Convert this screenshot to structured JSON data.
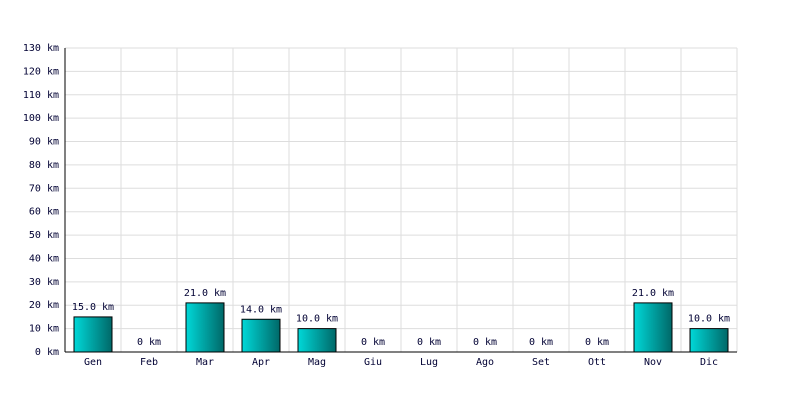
{
  "chart_data": {
    "type": "bar",
    "categories": [
      "Gen",
      "Feb",
      "Mar",
      "Apr",
      "Mag",
      "Giu",
      "Lug",
      "Ago",
      "Set",
      "Ott",
      "Nov",
      "Dic"
    ],
    "values": [
      15,
      0,
      21,
      14,
      10,
      0,
      0,
      0,
      0,
      0,
      21,
      10
    ],
    "value_labels": [
      "15.0 km",
      "0 km",
      "21.0 km",
      "14.0 km",
      "10.0 km",
      "0 km",
      "0 km",
      "0 km",
      "0 km",
      "0 km",
      "21.0 km",
      "10.0 km"
    ],
    "color": "#00d8d8",
    "ylim": [
      0,
      130
    ],
    "yticks": [
      {
        "value": 0,
        "label": "0 km"
      },
      {
        "value": 10,
        "label": "10 km"
      },
      {
        "value": 20,
        "label": "20 km"
      },
      {
        "value": 30,
        "label": "30 km"
      },
      {
        "value": 40,
        "label": "40 km"
      },
      {
        "value": 50,
        "label": "50 km"
      },
      {
        "value": 60,
        "label": "60 km"
      },
      {
        "value": 70,
        "label": "70 km"
      },
      {
        "value": 80,
        "label": "80 km"
      },
      {
        "value": 90,
        "label": "90 km"
      },
      {
        "value": 100,
        "label": "100 km"
      },
      {
        "value": 110,
        "label": "110 km"
      },
      {
        "value": 120,
        "label": "120 km"
      },
      {
        "value": 130,
        "label": "130 km"
      }
    ],
    "grid": true
  }
}
